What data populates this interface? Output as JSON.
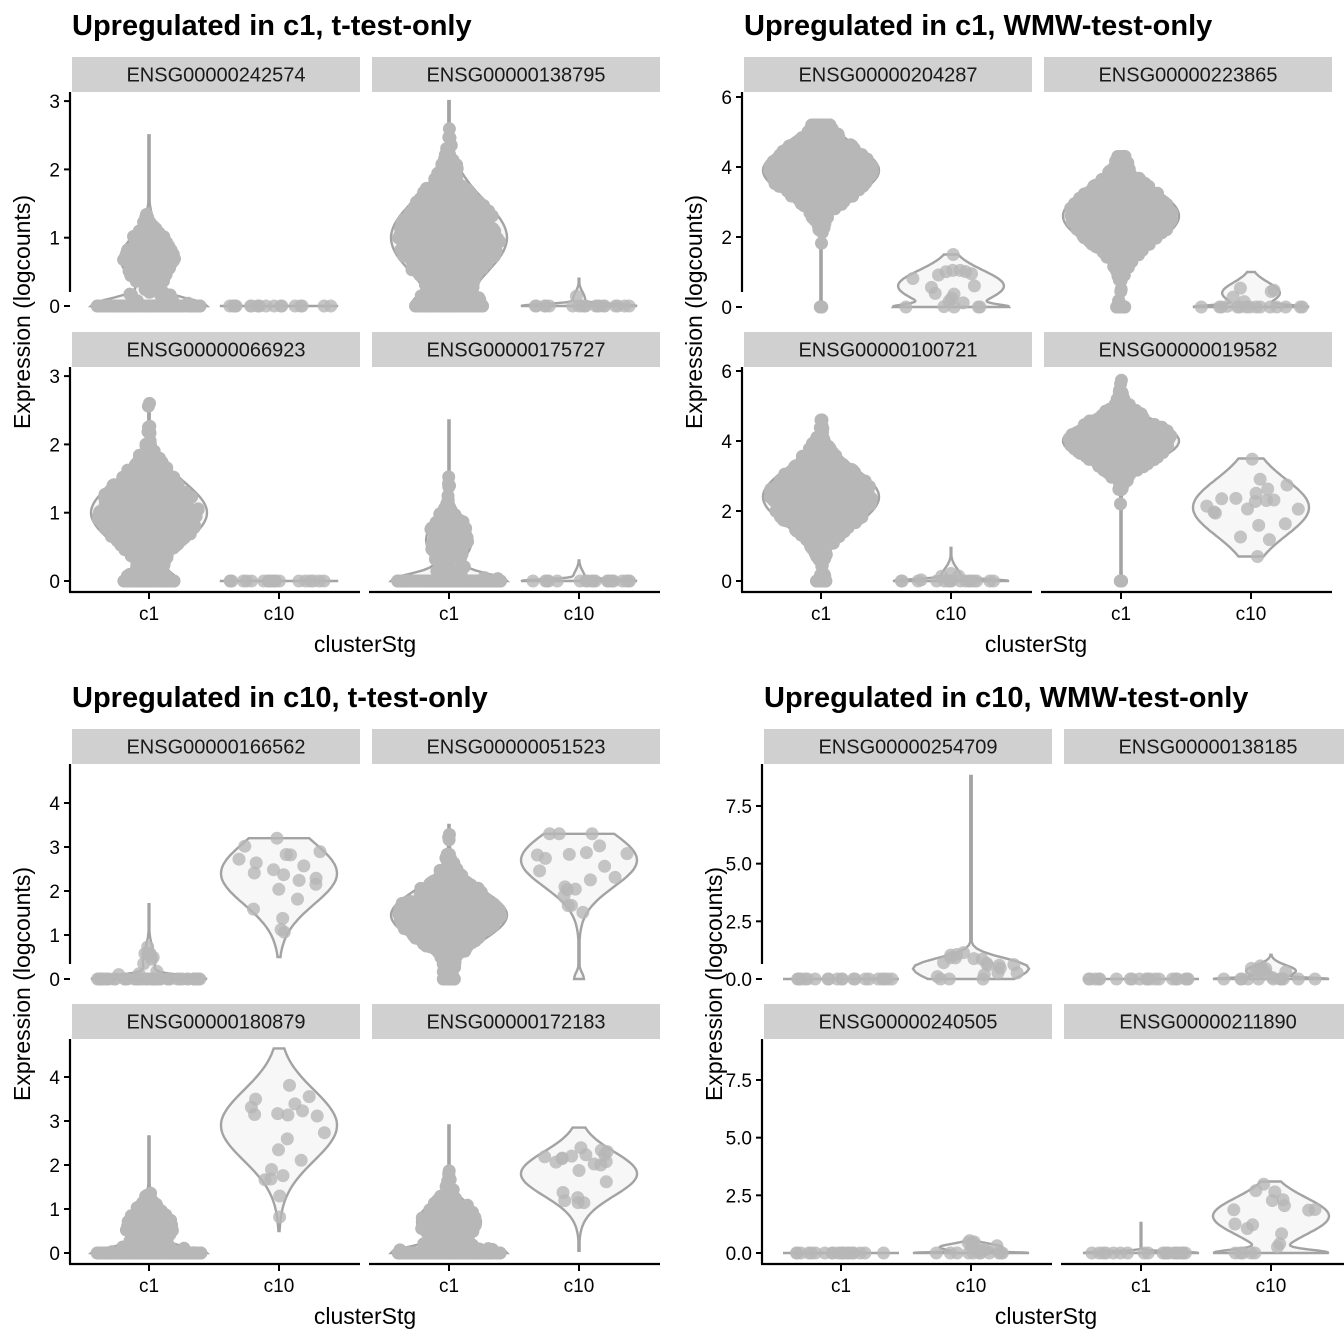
{
  "chart_data": [
    {
      "type": "violin",
      "title": "Upregulated in c1, t-test-only",
      "xlabel": "clusterStg",
      "ylabel": "Expression (logcounts)",
      "categories": [
        "c1",
        "c10"
      ],
      "ylim": [
        -0.15,
        3.1
      ],
      "yticks": [
        0,
        1,
        2,
        3
      ],
      "ytick_labels": [
        "0",
        "1",
        "2",
        "3"
      ],
      "colors": {
        "fill": "#f7f7f7",
        "outline": "#a3a3a3",
        "points": "#b7b7b7",
        "strip": "#d0d0d0"
      },
      "facets": [
        {
          "gene": "ENSG00000242574",
          "groups": [
            {
              "category": "c1",
              "n": 420,
              "min": 0,
              "max": 2.5,
              "zero_frac": 0.55,
              "mode": 0.7,
              "sd": 0.3
            },
            {
              "category": "c10",
              "n": 20,
              "min": 0,
              "max": 0,
              "zero_frac": 1,
              "mode": 0,
              "sd": 0
            }
          ]
        },
        {
          "gene": "ENSG00000138795",
          "groups": [
            {
              "category": "c1",
              "n": 700,
              "min": 0,
              "max": 3.0,
              "zero_frac": 0.22,
              "mode": 1.0,
              "sd": 0.55
            },
            {
              "category": "c10",
              "n": 20,
              "min": 0,
              "max": 0.4,
              "zero_frac": 0.85,
              "mode": 0.1,
              "sd": 0.1
            }
          ]
        },
        {
          "gene": "ENSG00000066923",
          "groups": [
            {
              "category": "c1",
              "n": 650,
              "min": 0,
              "max": 2.6,
              "zero_frac": 0.2,
              "mode": 1.0,
              "sd": 0.45
            },
            {
              "category": "c10",
              "n": 20,
              "min": 0,
              "max": 0,
              "zero_frac": 1,
              "mode": 0,
              "sd": 0
            }
          ]
        },
        {
          "gene": "ENSG00000175727",
          "groups": [
            {
              "category": "c1",
              "n": 350,
              "min": 0,
              "max": 2.35,
              "zero_frac": 0.6,
              "mode": 0.6,
              "sd": 0.3
            },
            {
              "category": "c10",
              "n": 20,
              "min": 0,
              "max": 0.3,
              "zero_frac": 0.85,
              "mode": 0.05,
              "sd": 0.1
            }
          ]
        }
      ]
    },
    {
      "type": "violin",
      "title": "Upregulated in c1, WMW-test-only",
      "xlabel": "clusterStg",
      "ylabel": "Expression (logcounts)",
      "categories": [
        "c1",
        "c10"
      ],
      "ylim": [
        -0.3,
        6.1
      ],
      "yticks": [
        0,
        2,
        4,
        6
      ],
      "ytick_labels": [
        "0",
        "2",
        "4",
        "6"
      ],
      "colors": {
        "fill": "#f7f7f7",
        "outline": "#a3a3a3",
        "points": "#b7b7b7",
        "strip": "#d0d0d0"
      },
      "facets": [
        {
          "gene": "ENSG00000204287",
          "groups": [
            {
              "category": "c1",
              "n": 700,
              "min": 0,
              "max": 5.2,
              "zero_frac": 0.01,
              "mode": 3.9,
              "sd": 0.7
            },
            {
              "category": "c10",
              "n": 20,
              "min": 0,
              "max": 1.5,
              "zero_frac": 0.3,
              "mode": 0.6,
              "sd": 0.45
            }
          ]
        },
        {
          "gene": "ENSG00000223865",
          "groups": [
            {
              "category": "c1",
              "n": 700,
              "min": 0,
              "max": 4.3,
              "zero_frac": 0.05,
              "mode": 2.6,
              "sd": 0.75
            },
            {
              "category": "c10",
              "n": 20,
              "min": 0,
              "max": 1.0,
              "zero_frac": 0.5,
              "mode": 0.4,
              "sd": 0.3
            }
          ]
        },
        {
          "gene": "ENSG00000100721",
          "groups": [
            {
              "category": "c1",
              "n": 700,
              "min": 0,
              "max": 4.6,
              "zero_frac": 0.05,
              "mode": 2.4,
              "sd": 0.8
            },
            {
              "category": "c10",
              "n": 20,
              "min": 0,
              "max": 0.95,
              "zero_frac": 0.75,
              "mode": 0.1,
              "sd": 0.25
            }
          ]
        },
        {
          "gene": "ENSG00000019582",
          "groups": [
            {
              "category": "c1",
              "n": 700,
              "min": 0,
              "max": 5.8,
              "zero_frac": 0.01,
              "mode": 4.0,
              "sd": 0.55
            },
            {
              "category": "c10",
              "n": 20,
              "min": 0.7,
              "max": 3.5,
              "zero_frac": 0,
              "mode": 2.1,
              "sd": 0.8
            }
          ]
        }
      ]
    },
    {
      "type": "violin",
      "title": "Upregulated in c10, t-test-only",
      "xlabel": "clusterStg",
      "ylabel": "Expression (logcounts)",
      "categories": [
        "c1",
        "c10"
      ],
      "ylim": [
        -0.25,
        4.85
      ],
      "yticks": [
        0,
        1,
        2,
        3,
        4
      ],
      "ytick_labels": [
        "0",
        "1",
        "2",
        "3",
        "4"
      ],
      "colors": {
        "fill": "#f7f7f7",
        "outline": "#a3a3a3",
        "points": "#b7b7b7",
        "strip": "#d0d0d0"
      },
      "facets": [
        {
          "gene": "ENSG00000166562",
          "groups": [
            {
              "category": "c1",
              "n": 60,
              "min": 0,
              "max": 1.7,
              "zero_frac": 0.85,
              "mode": 0.4,
              "sd": 0.3
            },
            {
              "category": "c10",
              "n": 20,
              "min": 0.5,
              "max": 3.2,
              "zero_frac": 0,
              "mode": 2.4,
              "sd": 0.7
            }
          ]
        },
        {
          "gene": "ENSG00000051523",
          "groups": [
            {
              "category": "c1",
              "n": 700,
              "min": 0,
              "max": 3.5,
              "zero_frac": 0.05,
              "mode": 1.45,
              "sd": 0.55
            },
            {
              "category": "c10",
              "n": 20,
              "min": 0,
              "max": 3.3,
              "zero_frac": 0.05,
              "mode": 2.7,
              "sd": 0.6
            }
          ]
        },
        {
          "gene": "ENSG00000180879",
          "groups": [
            {
              "category": "c1",
              "n": 350,
              "min": 0,
              "max": 2.65,
              "zero_frac": 0.55,
              "mode": 0.6,
              "sd": 0.35
            },
            {
              "category": "c10",
              "n": 20,
              "min": 0.5,
              "max": 4.65,
              "zero_frac": 0,
              "mode": 2.9,
              "sd": 0.8
            }
          ]
        },
        {
          "gene": "ENSG00000172183",
          "groups": [
            {
              "category": "c1",
              "n": 400,
              "min": 0,
              "max": 2.9,
              "zero_frac": 0.5,
              "mode": 0.7,
              "sd": 0.4
            },
            {
              "category": "c10",
              "n": 20,
              "min": 0.05,
              "max": 2.85,
              "zero_frac": 0,
              "mode": 1.8,
              "sd": 0.5
            }
          ]
        }
      ]
    },
    {
      "type": "violin",
      "title": "Upregulated in c10, WMW-test-only",
      "xlabel": "clusterStg",
      "ylabel": "Expression (logcounts)",
      "categories": [
        "c1",
        "c10"
      ],
      "ylim": [
        -0.5,
        9.3
      ],
      "yticks": [
        0,
        2.5,
        5,
        7.5
      ],
      "ytick_labels": [
        "0.0",
        "2.5",
        "5.0",
        "7.5"
      ],
      "colors": {
        "fill": "#f7f7f7",
        "outline": "#a3a3a3",
        "points": "#b7b7b7",
        "strip": "#d0d0d0"
      },
      "facets": [
        {
          "gene": "ENSG00000254709",
          "groups": [
            {
              "category": "c1",
              "n": 20,
              "min": 0,
              "max": 0,
              "zero_frac": 1,
              "mode": 0,
              "sd": 0
            },
            {
              "category": "c10",
              "n": 20,
              "min": 0,
              "max": 8.8,
              "zero_frac": 0.3,
              "mode": 0.6,
              "sd": 0.35
            }
          ]
        },
        {
          "gene": "ENSG00000138185",
          "groups": [
            {
              "category": "c1",
              "n": 20,
              "min": 0,
              "max": 0,
              "zero_frac": 1,
              "mode": 0,
              "sd": 0
            },
            {
              "category": "c10",
              "n": 20,
              "min": 0,
              "max": 1.05,
              "zero_frac": 0.55,
              "mode": 0.35,
              "sd": 0.25
            }
          ]
        },
        {
          "gene": "ENSG00000240505",
          "groups": [
            {
              "category": "c1",
              "n": 20,
              "min": 0,
              "max": 0,
              "zero_frac": 1,
              "mode": 0,
              "sd": 0
            },
            {
              "category": "c10",
              "n": 20,
              "min": 0,
              "max": 0.6,
              "zero_frac": 0.5,
              "mode": 0.25,
              "sd": 0.15
            }
          ]
        },
        {
          "gene": "ENSG00000211890",
          "groups": [
            {
              "category": "c1",
              "n": 20,
              "min": 0,
              "max": 1.3,
              "zero_frac": 0.95,
              "mode": 0,
              "sd": 0.05
            },
            {
              "category": "c10",
              "n": 20,
              "min": 0,
              "max": 3.1,
              "zero_frac": 0.35,
              "mode": 1.6,
              "sd": 0.8
            }
          ]
        }
      ]
    }
  ]
}
